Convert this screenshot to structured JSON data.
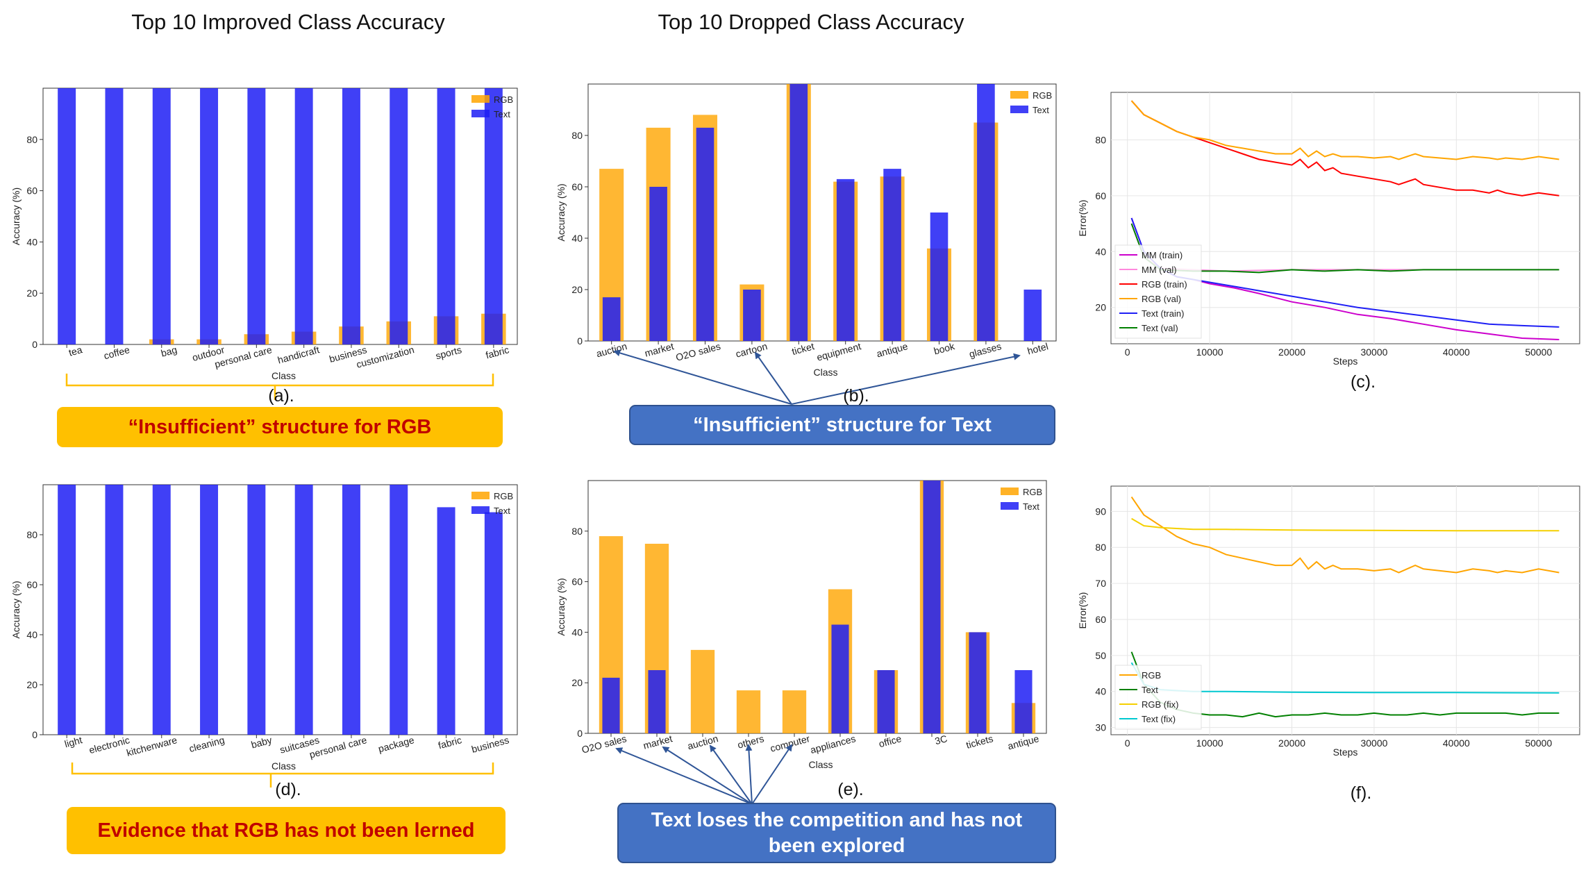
{
  "colors": {
    "rgb": "#FFA500",
    "text": "#1F1FF5",
    "callout_orange": "#FFC000",
    "callout_red_text": "#C00000",
    "callout_blue": "#4472C4"
  },
  "panels": {
    "a": {
      "title": "Top 10 Improved Class Accuracy",
      "letter": "(a).",
      "callout": "“Insufficient”   structure for RGB"
    },
    "b": {
      "title": "Top 10 Dropped Class Accuracy",
      "letter": "(b).",
      "callout": "“Insufficient”   structure for Text"
    },
    "c": {
      "letter": "(c)."
    },
    "d": {
      "letter": "(d).",
      "callout": "Evidence that RGB has not been lerned"
    },
    "e": {
      "letter": "(e).",
      "callout": "Text loses the competition and has not been explored"
    },
    "f": {
      "letter": "(f)."
    }
  },
  "chart_data": [
    {
      "id": "a",
      "type": "bar",
      "xlabel": "Class",
      "ylabel": "Accuracy (%)",
      "ylim": [
        0,
        100
      ],
      "yticks": [
        "0",
        "20",
        "40",
        "60",
        "80"
      ],
      "legend_position": "top-right",
      "categories": [
        "tea",
        "coffee",
        "bag",
        "outdoor",
        "personal care",
        "handicraft",
        "business",
        "customization",
        "sports",
        "fabric"
      ],
      "series": [
        {
          "name": "RGB",
          "values": [
            0,
            0,
            2,
            2,
            4,
            5,
            7,
            9,
            11,
            12
          ]
        },
        {
          "name": "Text",
          "values": [
            100,
            100,
            100,
            100,
            100,
            100,
            100,
            100,
            100,
            100
          ]
        }
      ]
    },
    {
      "id": "b",
      "type": "bar",
      "xlabel": "Class",
      "ylabel": "Accuracy (%)",
      "ylim": [
        0,
        100
      ],
      "yticks": [
        "0",
        "20",
        "40",
        "60",
        "80"
      ],
      "legend_position": "top-right",
      "categories": [
        "auction",
        "market",
        "O2O sales",
        "cartoon",
        "ticket",
        "equipment",
        "antique",
        "book",
        "glasses",
        "hotel"
      ],
      "series": [
        {
          "name": "RGB",
          "values": [
            67,
            83,
            88,
            22,
            100,
            62,
            64,
            36,
            85,
            0
          ]
        },
        {
          "name": "Text",
          "values": [
            17,
            60,
            83,
            20,
            100,
            63,
            67,
            50,
            100,
            20
          ]
        }
      ]
    },
    {
      "id": "c",
      "type": "line",
      "xlabel": "Steps",
      "ylabel": "Error(%)",
      "xlim": [
        -2000,
        55000
      ],
      "ylim": [
        7,
        97
      ],
      "xticks": [
        "0",
        "10000",
        "20000",
        "30000",
        "40000",
        "50000"
      ],
      "yticks": [
        "20",
        "40",
        "60",
        "80"
      ],
      "legend_position": "lower-left",
      "series": [
        {
          "name": "MM (train)",
          "color": "#CC00CC",
          "x": [
            500,
            2000,
            4000,
            6000,
            8000,
            10000,
            13000,
            16000,
            20000,
            24000,
            28000,
            32000,
            36000,
            40000,
            44000,
            48000,
            52500
          ],
          "y": [
            52,
            40,
            34,
            31,
            30,
            28.5,
            27,
            25,
            22,
            20,
            17.5,
            16,
            14,
            12,
            10.5,
            9,
            8.5
          ]
        },
        {
          "name": "MM (val)",
          "color": "#FF88DD",
          "x": [
            500,
            2000,
            4000,
            8000,
            12000,
            20000,
            30000,
            40000,
            52500
          ],
          "y": [
            50,
            38,
            34,
            33.5,
            33,
            33.5,
            33.5,
            33.5,
            33.5
          ]
        },
        {
          "name": "RGB (train)",
          "color": "#FF0000",
          "x": [
            500,
            2000,
            4000,
            6000,
            8000,
            10000,
            12000,
            14000,
            16000,
            18000,
            20000,
            21000,
            22000,
            23000,
            24000,
            25000,
            26000,
            28000,
            30000,
            32000,
            33000,
            34000,
            35000,
            36000,
            38000,
            40000,
            42000,
            44000,
            45000,
            46000,
            48000,
            50000,
            52500
          ],
          "y": [
            94,
            89,
            86,
            83,
            81,
            79,
            77,
            75,
            73,
            72,
            71,
            73,
            70,
            72,
            69,
            70,
            68,
            67,
            66,
            65,
            64,
            65,
            66,
            64,
            63,
            62,
            62,
            61,
            62,
            61,
            60,
            61,
            60
          ]
        },
        {
          "name": "RGB (val)",
          "color": "#FFA500",
          "x": [
            500,
            2000,
            4000,
            6000,
            8000,
            10000,
            12000,
            14000,
            16000,
            18000,
            20000,
            21000,
            22000,
            23000,
            24000,
            25000,
            26000,
            28000,
            30000,
            32000,
            33000,
            34000,
            35000,
            36000,
            38000,
            40000,
            42000,
            44000,
            45000,
            46000,
            48000,
            50000,
            52500
          ],
          "y": [
            94,
            89,
            86,
            83,
            81,
            80,
            78,
            77,
            76,
            75,
            75,
            77,
            74,
            76,
            74,
            75,
            74,
            74,
            73.5,
            74,
            73,
            74,
            75,
            74,
            73.5,
            73,
            74,
            73.5,
            73,
            73.5,
            73,
            74,
            73
          ]
        },
        {
          "name": "Text (train)",
          "color": "#1F1FF5",
          "x": [
            500,
            2000,
            4000,
            6000,
            8000,
            10000,
            13000,
            16000,
            20000,
            24000,
            28000,
            32000,
            36000,
            40000,
            44000,
            48000,
            52500
          ],
          "y": [
            52,
            40,
            34,
            31,
            30,
            29,
            27.5,
            26,
            24,
            22,
            20,
            18.5,
            17,
            15.5,
            14,
            13.5,
            13
          ]
        },
        {
          "name": "Text (val)",
          "color": "#008000",
          "x": [
            500,
            2000,
            4000,
            8000,
            12000,
            16000,
            20000,
            24000,
            28000,
            32000,
            36000,
            40000,
            44000,
            48000,
            52500
          ],
          "y": [
            50,
            38,
            33.5,
            33,
            33,
            32.5,
            33.5,
            33,
            33.5,
            33,
            33.5,
            33.5,
            33.5,
            33.5,
            33.5
          ]
        }
      ]
    },
    {
      "id": "d",
      "type": "bar",
      "xlabel": "Class",
      "ylabel": "Accuracy (%)",
      "ylim": [
        0,
        100
      ],
      "yticks": [
        "0",
        "20",
        "40",
        "60",
        "80"
      ],
      "legend_position": "top-right",
      "categories": [
        "light",
        "electronic",
        "kitchenware",
        "cleaning",
        "baby",
        "suitcases",
        "personal care",
        "package",
        "fabric",
        "business"
      ],
      "series": [
        {
          "name": "RGB",
          "values": [
            0,
            0,
            0,
            0,
            0,
            0,
            0,
            0,
            0,
            0
          ]
        },
        {
          "name": "Text",
          "values": [
            100,
            100,
            100,
            100,
            100,
            100,
            100,
            100,
            91,
            89
          ]
        }
      ]
    },
    {
      "id": "e",
      "type": "bar",
      "xlabel": "Class",
      "ylabel": "Accuracy (%)",
      "ylim": [
        0,
        100
      ],
      "yticks": [
        "0",
        "20",
        "40",
        "60",
        "80"
      ],
      "legend_position": "top-right",
      "categories": [
        "O2O sales",
        "market",
        "auction",
        "others",
        "computer",
        "appliances",
        "office",
        "3C",
        "tickets",
        "antique"
      ],
      "series": [
        {
          "name": "RGB",
          "values": [
            78,
            75,
            33,
            17,
            17,
            57,
            25,
            100,
            40,
            12
          ]
        },
        {
          "name": "Text",
          "values": [
            22,
            25,
            0,
            0,
            0,
            43,
            25,
            100,
            40,
            25
          ]
        }
      ]
    },
    {
      "id": "f",
      "type": "line",
      "xlabel": "Steps",
      "ylabel": "Error(%)",
      "xlim": [
        -2000,
        55000
      ],
      "ylim": [
        28,
        97
      ],
      "xticks": [
        "0",
        "10000",
        "20000",
        "30000",
        "40000",
        "50000"
      ],
      "yticks": [
        "30",
        "40",
        "50",
        "60",
        "70",
        "80",
        "90"
      ],
      "legend_position": "lower-left",
      "series": [
        {
          "name": "RGB",
          "color": "#FFA500",
          "x": [
            500,
            2000,
            4000,
            6000,
            8000,
            10000,
            12000,
            14000,
            16000,
            18000,
            20000,
            21000,
            22000,
            23000,
            24000,
            25000,
            26000,
            28000,
            30000,
            32000,
            33000,
            34000,
            35000,
            36000,
            38000,
            40000,
            42000,
            44000,
            45000,
            46000,
            48000,
            50000,
            52500
          ],
          "y": [
            94,
            89,
            86,
            83,
            81,
            80,
            78,
            77,
            76,
            75,
            75,
            77,
            74,
            76,
            74,
            75,
            74,
            74,
            73.5,
            74,
            73,
            74,
            75,
            74,
            73.5,
            73,
            74,
            73.5,
            73,
            73.5,
            73,
            74,
            73
          ]
        },
        {
          "name": "Text",
          "color": "#008000",
          "x": [
            500,
            2000,
            4000,
            6000,
            8000,
            10000,
            12000,
            14000,
            16000,
            18000,
            20000,
            22000,
            24000,
            26000,
            28000,
            30000,
            32000,
            34000,
            36000,
            38000,
            40000,
            42000,
            44000,
            46000,
            48000,
            50000,
            52500
          ],
          "y": [
            51,
            42,
            37,
            35,
            34,
            33.5,
            33.5,
            33,
            34,
            33,
            33.5,
            33.5,
            34,
            33.5,
            33.5,
            34,
            33.5,
            33.5,
            34,
            33.5,
            34,
            34,
            34,
            34,
            33.5,
            34,
            34
          ]
        },
        {
          "name": "RGB (fix)",
          "color": "#F5D000",
          "x": [
            500,
            2000,
            4000,
            8000,
            12000,
            20000,
            30000,
            40000,
            52500
          ],
          "y": [
            88,
            86,
            85.5,
            85,
            85,
            84.8,
            84.7,
            84.6,
            84.6
          ]
        },
        {
          "name": "Text (fix)",
          "color": "#00C8D0",
          "x": [
            500,
            2000,
            4000,
            8000,
            12000,
            20000,
            30000,
            40000,
            52500
          ],
          "y": [
            48,
            42,
            40.5,
            40,
            40,
            39.8,
            39.7,
            39.7,
            39.6
          ]
        }
      ]
    }
  ]
}
